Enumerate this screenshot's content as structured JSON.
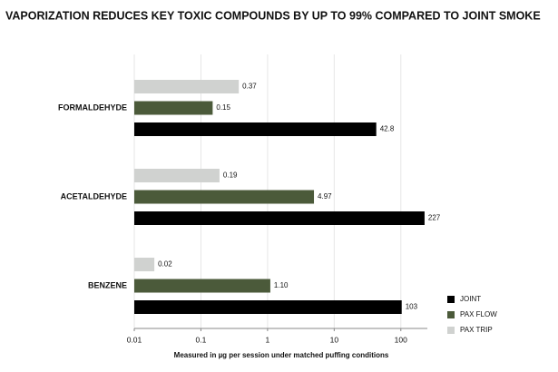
{
  "chart_data": {
    "type": "bar",
    "orientation": "horizontal",
    "title": "VAPORIZATION REDUCES KEY TOXIC COMPOUNDS BY UP TO 99% COMPARED TO JOINT SMOKE",
    "x_label": "Measured in µg per session under matched puffing conditions",
    "categories": [
      "FORMALDEHYDE",
      "ACETALDEHYDE",
      "BENZENE"
    ],
    "series": [
      {
        "name": "JOINT",
        "color": "#000000",
        "values": [
          42.8,
          227,
          103
        ]
      },
      {
        "name": "PAX FLOW",
        "color": "#4b5a3a",
        "values": [
          0.15,
          4.97,
          1.1
        ],
        "value_labels": [
          "0.15",
          "4.97",
          "1.10"
        ]
      },
      {
        "name": "PAX TRIP",
        "color": "#d0d2d0",
        "values": [
          0.37,
          0.19,
          0.02
        ]
      }
    ],
    "x_log": true,
    "xlim": [
      0.01,
      250
    ],
    "xticks": [
      0.01,
      0.1,
      1,
      10,
      100
    ],
    "grid": true,
    "legend": "lower right"
  }
}
